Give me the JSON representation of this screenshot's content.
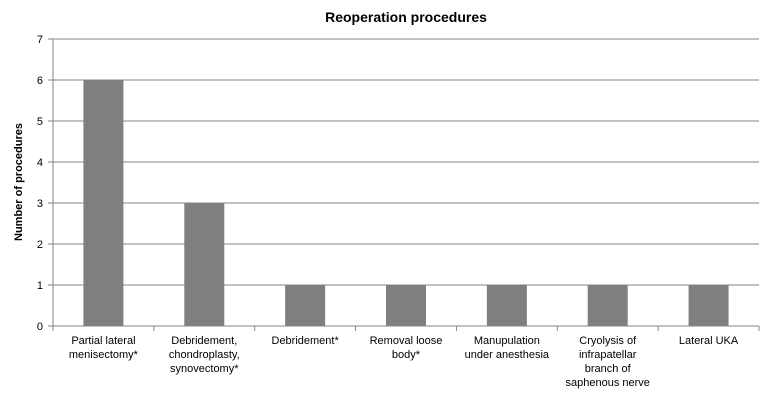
{
  "chart_data": {
    "type": "bar",
    "title": "Reoperation procedures",
    "y_label": "Number of procedures",
    "categories": [
      "Partial lateral\nmenisectomy*",
      "Debridement,\nchondroplasty,\nsynovectomy*",
      "Debridement*",
      "Removal loose\nbody*",
      "Manupulation\nunder anesthesia",
      "Cryolysis of\ninfrapatellar\nbranch of\nsaphenous nerve",
      "Lateral UKA"
    ],
    "values": [
      6,
      3,
      1,
      1,
      1,
      1,
      1
    ],
    "color": "#7f7f7f",
    "ylim": [
      0,
      7
    ],
    "yticks": [
      0,
      1,
      2,
      3,
      4,
      5,
      6,
      7
    ],
    "grid": true
  }
}
